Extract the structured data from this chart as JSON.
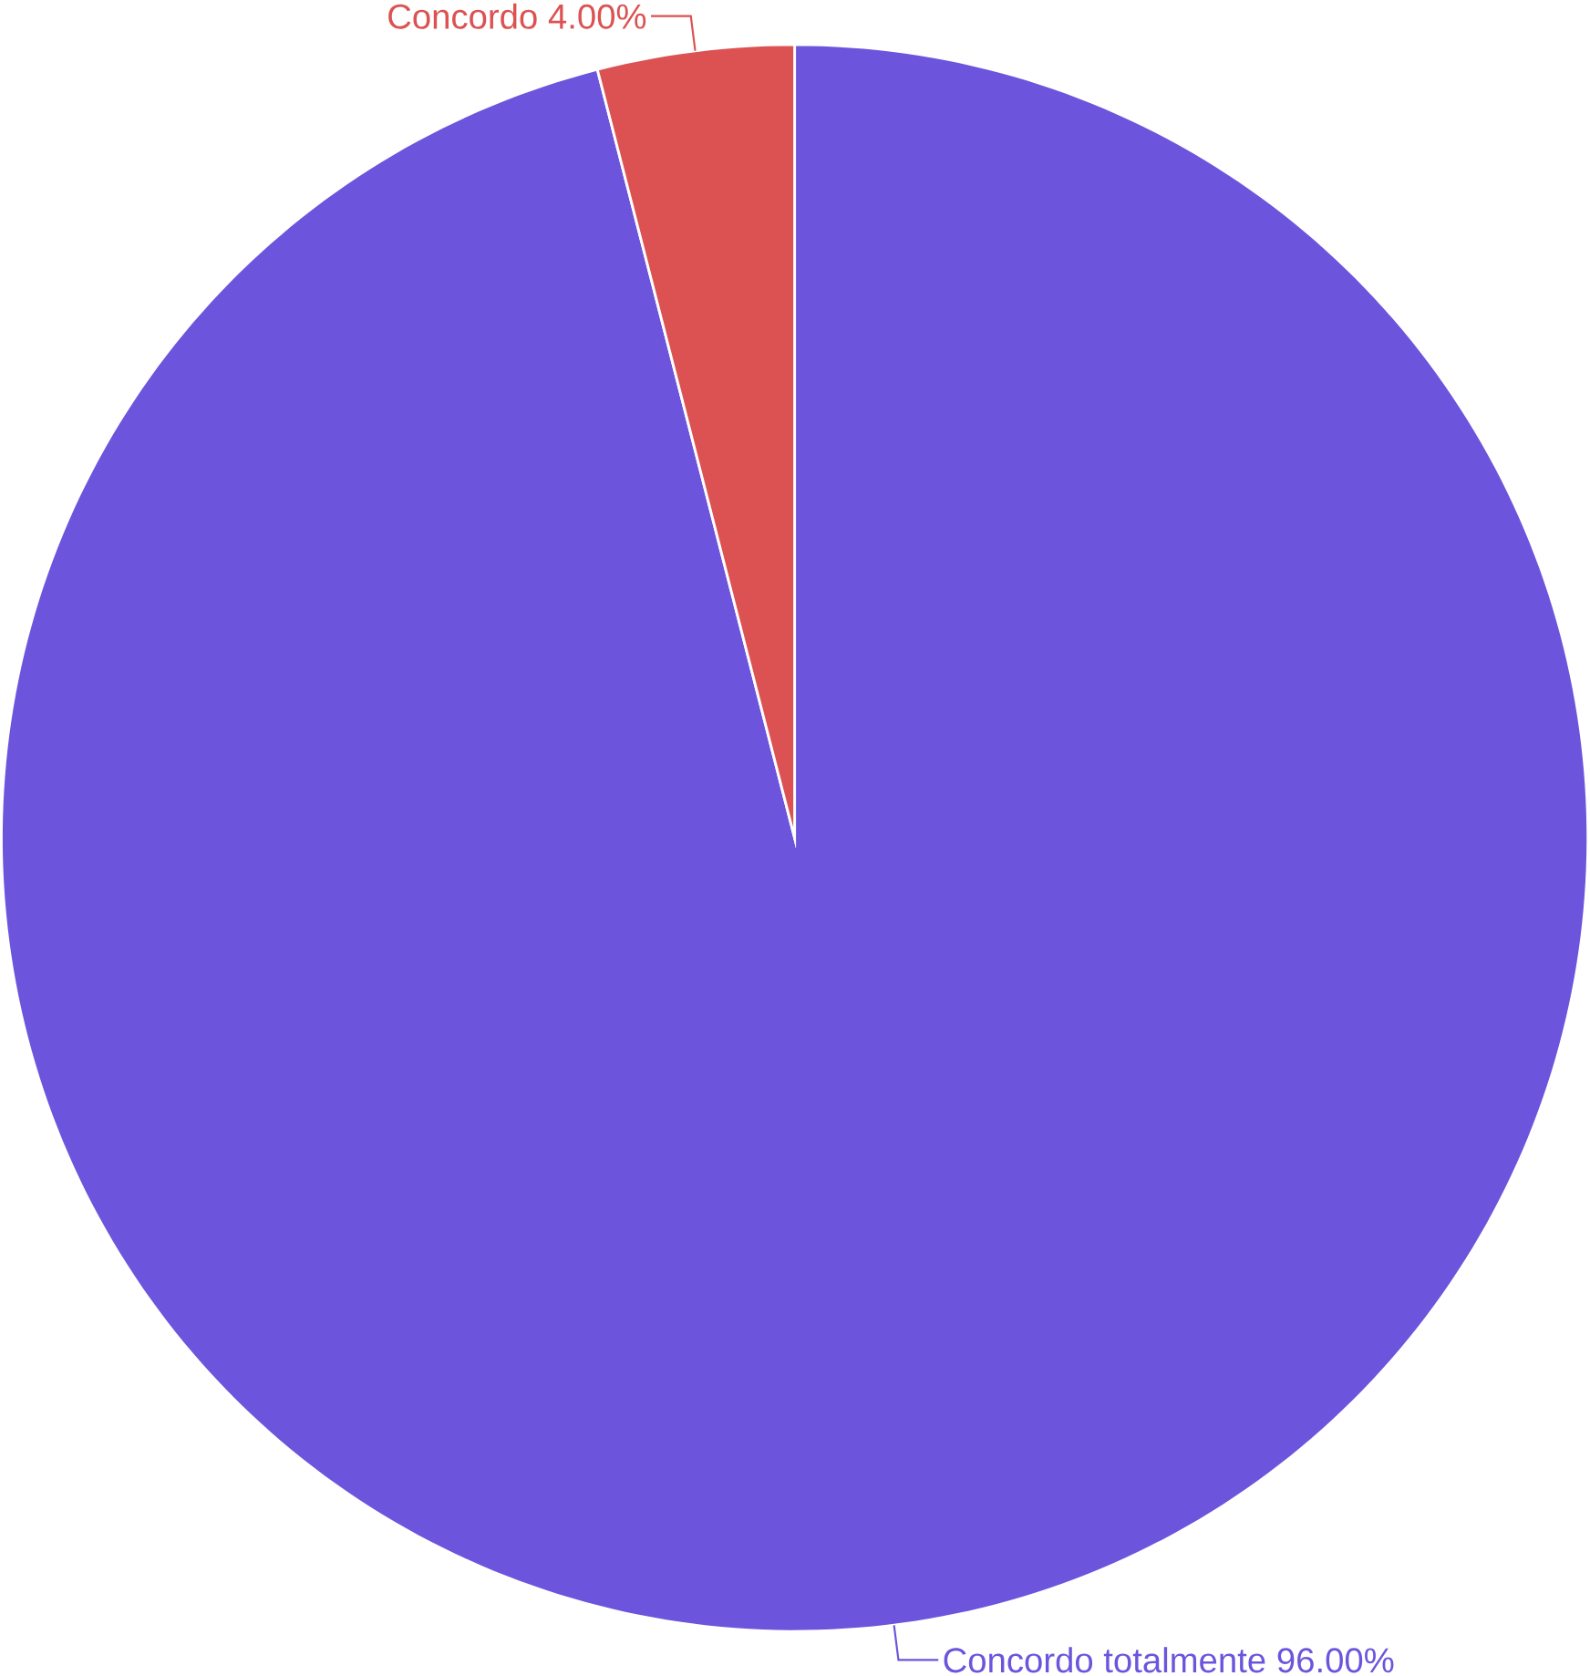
{
  "chart_data": {
    "type": "pie",
    "categories": [
      "Concordo totalmente",
      "Concordo"
    ],
    "values": [
      96,
      4
    ],
    "value_labels": [
      "96.00%",
      "4.00%"
    ],
    "colors": [
      "#6c55dc",
      "#dc5252"
    ]
  }
}
